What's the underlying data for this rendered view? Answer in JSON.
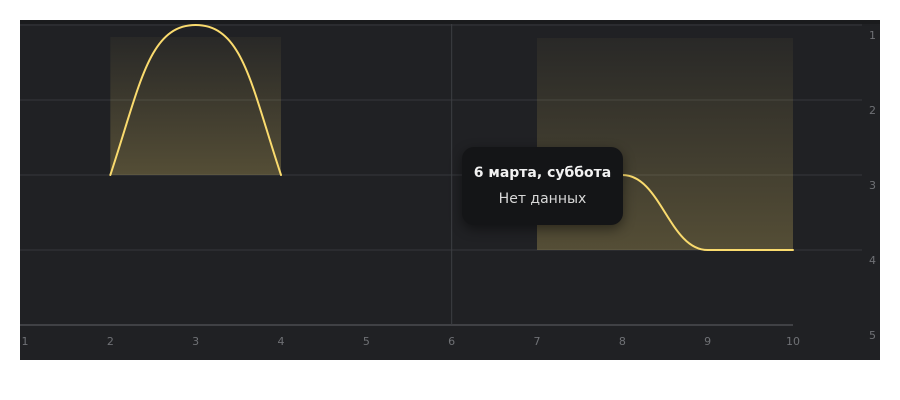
{
  "chart_data": {
    "type": "area",
    "title": "",
    "xlabel": "",
    "ylabel": "",
    "x_ticks": [
      "1",
      "2",
      "3",
      "4",
      "5",
      "6",
      "7",
      "8",
      "9",
      "10"
    ],
    "y_ticks": [
      "1",
      "2",
      "3",
      "4",
      "5"
    ],
    "xlim": [
      1,
      10
    ],
    "ylim": [
      1,
      5
    ],
    "y_inverted": true,
    "grid": true,
    "series": [
      {
        "segments": [
          {
            "x": [
              2,
              3,
              4
            ],
            "y": [
              3,
              1,
              3
            ],
            "shape": "smooth"
          },
          {
            "x": [
              7,
              8,
              9,
              10
            ],
            "y": [
              3,
              3,
              4,
              4
            ],
            "shape": "smooth"
          }
        ],
        "color": "#fadb6e",
        "fill": "gradient"
      }
    ],
    "highlight_x": 6,
    "tooltip": {
      "date": "6 марта, суббота",
      "status": "Нет данных"
    }
  }
}
